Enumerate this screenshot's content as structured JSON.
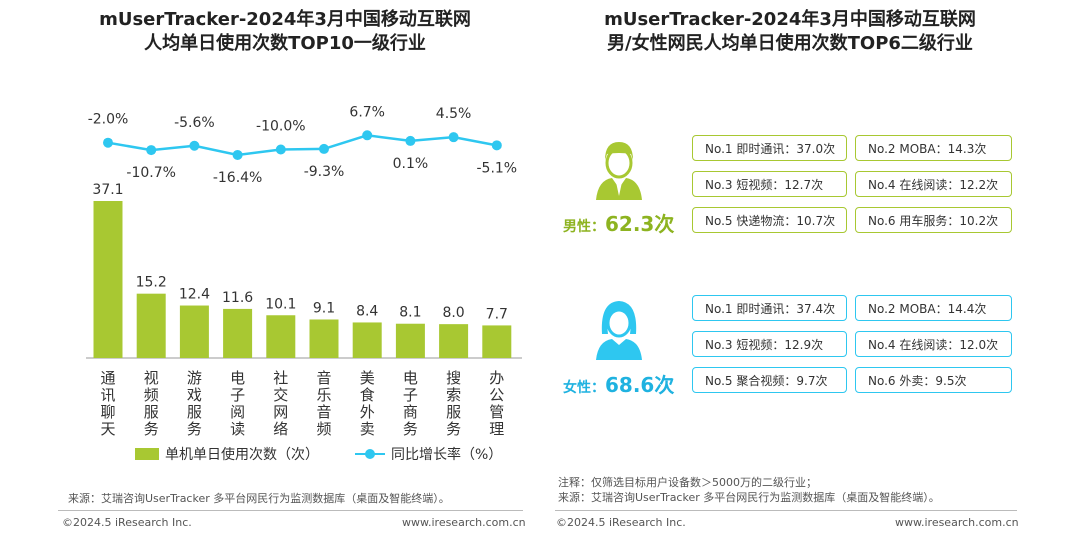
{
  "left": {
    "title_line1": "mUserTracker-2024年3月中国移动互联网",
    "title_line2": "人均单日使用次数TOP10一级行业",
    "legend_bar": "单机单日使用次数（次）",
    "legend_line": "同比增长率（%）",
    "source": "来源：艾瑞咨询UserTracker 多平台网民行为监测数据库（桌面及智能终端）。"
  },
  "right": {
    "title_line1": "mUserTracker-2024年3月中国移动互联网",
    "title_line2": "男/女性网民人均单日使用次数TOP6二级行业",
    "male": {
      "label": "男性：",
      "value": "62.3次",
      "items": [
        "No.1 即时通讯：37.0次",
        "No.2 MOBA：14.3次",
        "No.3 短视频：12.7次",
        "No.4 在线阅读：12.2次",
        "No.5 快递物流：10.7次",
        "No.6 用车服务：10.2次"
      ]
    },
    "female": {
      "label": "女性：",
      "value": "68.6次",
      "items": [
        "No.1 即时通讯：37.4次",
        "No.2 MOBA：14.4次",
        "No.3 短视频：12.9次",
        "No.4 在线阅读：12.0次",
        "No.5 聚合视频：9.7次",
        "No.6 外卖：9.5次"
      ]
    },
    "note": "注释：仅筛选目标用户设备数＞5000万的二级行业；",
    "source": "来源：艾瑞咨询UserTracker 多平台网民行为监测数据库（桌面及智能终端）。"
  },
  "footer": {
    "copyright": "©2024.5 iResearch Inc.",
    "url": "www.iresearch.com.cn"
  },
  "colors": {
    "bar": "#a8c832",
    "line": "#2ec7f0",
    "male": "#a8c832",
    "female": "#2ec7f0"
  },
  "icons": {
    "male": "male-user-icon",
    "female": "female-user-icon"
  },
  "chart_data": {
    "type": "bar",
    "categories": [
      "通讯聊天",
      "视频服务",
      "游戏服务",
      "电子阅读",
      "社交网络",
      "音乐音频",
      "美食外卖",
      "电子商务",
      "搜索服务",
      "办公管理"
    ],
    "series": [
      {
        "name": "单机单日使用次数（次）",
        "type": "bar",
        "values": [
          37.1,
          15.2,
          12.4,
          11.6,
          10.1,
          9.1,
          8.4,
          8.1,
          8.0,
          7.7
        ]
      },
      {
        "name": "同比增长率（%）",
        "type": "line",
        "values": [
          -2.0,
          -10.7,
          -5.6,
          -16.4,
          -10.0,
          -9.3,
          6.7,
          0.1,
          4.5,
          -5.1
        ]
      }
    ],
    "bar_labels": [
      "37.1",
      "15.2",
      "12.4",
      "11.6",
      "10.1",
      "9.1",
      "8.4",
      "8.1",
      "8.0",
      "7.7"
    ],
    "line_labels": [
      "-2.0%",
      "-10.7%",
      "-5.6%",
      "-16.4%",
      "-10.0%",
      "-9.3%",
      "6.7%",
      "0.1%",
      "4.5%",
      "-5.1%"
    ],
    "legend_position": "bottom",
    "grid": false
  }
}
